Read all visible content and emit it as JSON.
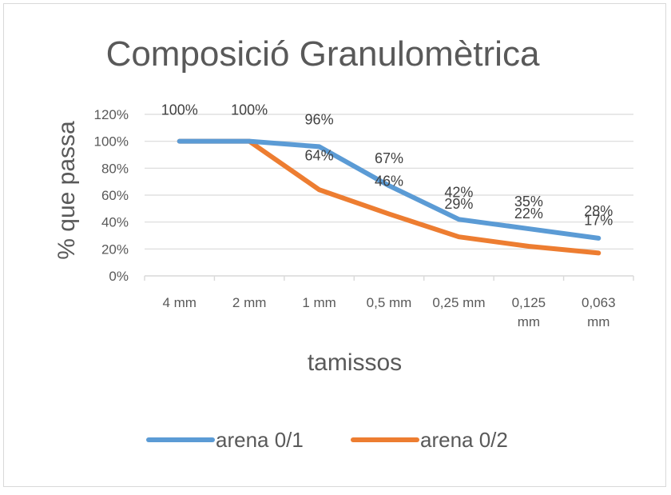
{
  "chart_data": {
    "type": "line",
    "title": "Composició Granulomètrica",
    "xlabel": "tamissos",
    "ylabel": "% que passa",
    "categories": [
      [
        "4 mm"
      ],
      [
        "2 mm"
      ],
      [
        "1 mm"
      ],
      [
        "0,5 mm"
      ],
      [
        "0,25 mm"
      ],
      [
        "0,125",
        "mm"
      ],
      [
        "0,063",
        "mm"
      ]
    ],
    "y_ticks": [
      "0%",
      "20%",
      "40%",
      "60%",
      "80%",
      "100%",
      "120%"
    ],
    "ylim": [
      0,
      120
    ],
    "y_step": 20,
    "grid": true,
    "legend_position": "bottom",
    "series": [
      {
        "name": "arena 0/1",
        "color": "#5b9bd5",
        "values": [
          100,
          100,
          96,
          67,
          42,
          35,
          28
        ],
        "labels": [
          "100%",
          "100%",
          "96%",
          "67%",
          "42%",
          "35%",
          "28%"
        ]
      },
      {
        "name": "arena 0/2",
        "color": "#ed7d31",
        "values": [
          100,
          100,
          64,
          46,
          29,
          22,
          17
        ],
        "labels": [
          "",
          "",
          "64%",
          "46%",
          "29%",
          "22%",
          "17%"
        ]
      }
    ]
  }
}
